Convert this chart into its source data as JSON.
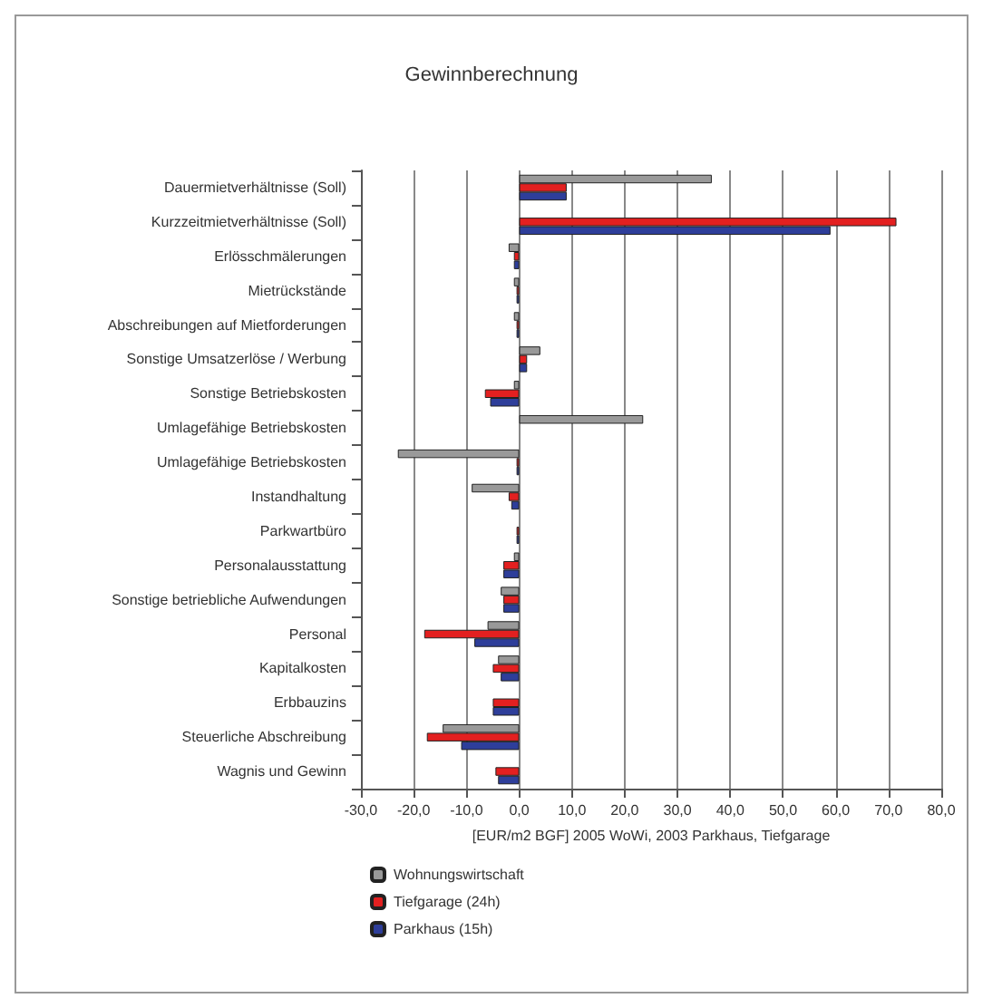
{
  "chart_data": {
    "type": "bar",
    "orientation": "horizontal",
    "title": "Gewinnberechnung",
    "xlabel": "[EUR/m2 BGF] 2005 WoWi, 2003 Parkhaus, Tiefgarage",
    "categories": [
      "Dauermietverhältnisse (Soll)",
      "Kurzzeitmietverhältnisse (Soll)",
      "Erlösschmälerungen",
      "Mietrückstände",
      "Abschreibungen auf Mietforderungen",
      "Sonstige Umsatzerlöse / Werbung",
      "Sonstige Betriebskosten",
      "Umlagefähige Betriebskosten",
      "Umlagefähige Betriebskosten",
      "Instandhaltung",
      "Parkwartbüro",
      "Personalausstattung",
      "Sonstige betriebliche Aufwendungen",
      "Personal",
      "Kapitalkosten",
      "Erbbauzins",
      "Steuerliche Abschreibung",
      "Wagnis und Gewinn"
    ],
    "series": [
      {
        "name": "Wohnungswirtschaft",
        "color": "#999999",
        "values": [
          36.5,
          null,
          -2,
          -1,
          -1,
          4,
          -1,
          23.5,
          -23,
          -9,
          null,
          -1,
          -3.5,
          -6,
          -4,
          null,
          -14.5,
          null
        ]
      },
      {
        "name": "Tiefgarage (24h)",
        "color": "#e32020",
        "values": [
          9,
          71.5,
          -1,
          -0.5,
          -0.5,
          1.5,
          -6.5,
          null,
          -0.5,
          -2,
          -0.5,
          -3,
          -3,
          -18,
          -5,
          -5,
          -17.5,
          -4.5
        ]
      },
      {
        "name": "Parkhaus (15h)",
        "color": "#2e3e9a",
        "values": [
          9,
          59,
          -1,
          -0.5,
          -0.5,
          1.5,
          -5.5,
          null,
          -0.5,
          -1.5,
          -0.5,
          -3,
          -3,
          -8.5,
          -3.5,
          -5,
          -11,
          -4
        ]
      }
    ],
    "xlim": [
      -30,
      80
    ],
    "xticks": [
      {
        "value": -30,
        "label": "-30,0"
      },
      {
        "value": -20,
        "label": "-20,0"
      },
      {
        "value": -10,
        "label": "-10,0"
      },
      {
        "value": 0,
        "label": "0,0"
      },
      {
        "value": 10,
        "label": "10,0"
      },
      {
        "value": 20,
        "label": "20,0"
      },
      {
        "value": 30,
        "label": "30,0"
      },
      {
        "value": 40,
        "label": "40,0"
      },
      {
        "value": 50,
        "label": "50,0"
      },
      {
        "value": 60,
        "label": "60,0"
      },
      {
        "value": 70,
        "label": "70,0"
      },
      {
        "value": 80,
        "label": "80,0"
      }
    ],
    "grid": "x",
    "legend": "bottom left"
  }
}
